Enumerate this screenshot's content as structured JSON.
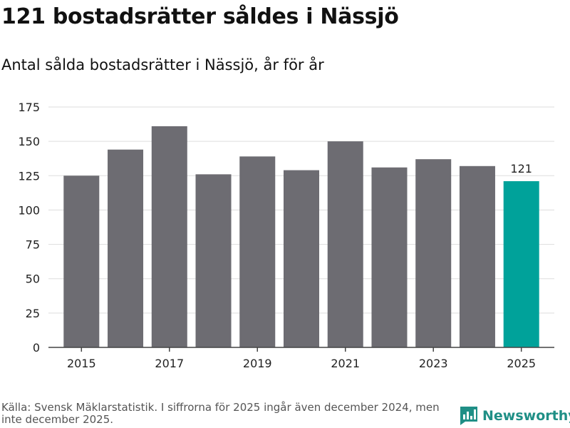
{
  "header": {
    "title": "121 bostadsrätter såldes i Nässjö",
    "subtitle": "Antal sålda bostadsrätter i Nässjö, år för år"
  },
  "footer": {
    "source": "Källa: Svensk Mäklarstatistik. I siffrorna för 2025 ingår även december 2024, men inte december 2025.",
    "brand": "Newsworthy",
    "brand_icon": "chart-logo-icon"
  },
  "colors": {
    "bar": "#6d6c72",
    "highlight": "#00a29a",
    "grid": "#dddddd",
    "axis": "#444444",
    "brand": "#1f8f86"
  },
  "chart_data": {
    "type": "bar",
    "title": "Antal sålda bostadsrätter i Nässjö, år för år",
    "categories": [
      "2015",
      "2016",
      "2017",
      "2018",
      "2019",
      "2020",
      "2021",
      "2022",
      "2023",
      "2024",
      "2025"
    ],
    "values": [
      125,
      144,
      161,
      126,
      139,
      129,
      150,
      131,
      137,
      132,
      121
    ],
    "x_tick_labels": [
      "2015",
      "2017",
      "2019",
      "2021",
      "2023",
      "2025"
    ],
    "y_ticks": [
      0,
      25,
      50,
      75,
      100,
      125,
      150,
      175
    ],
    "ylim": [
      0,
      175
    ],
    "xlabel": "",
    "ylabel": "",
    "grid": true,
    "highlight_index": 10,
    "data_labels": [
      {
        "category": "2025",
        "text": "121"
      }
    ]
  }
}
